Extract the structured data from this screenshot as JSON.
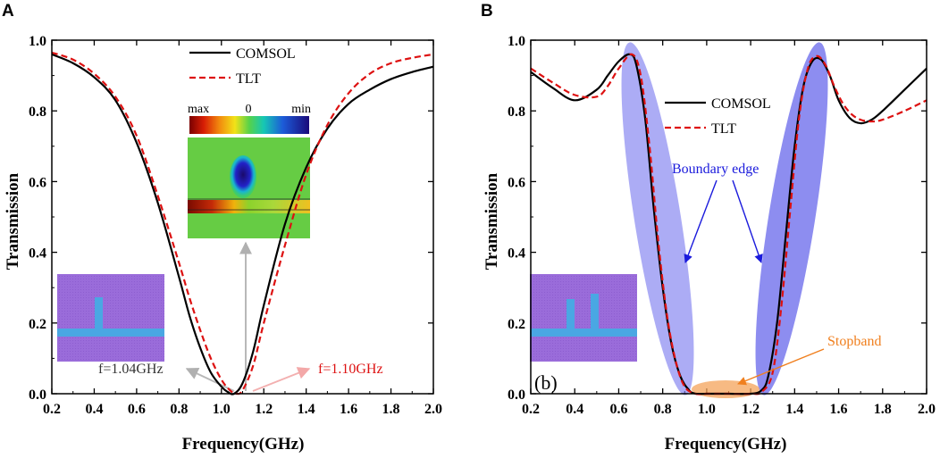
{
  "colors": {
    "comsol": "#000000",
    "tlt": "#dd1111",
    "edge_fill": "#6c6cf0",
    "stop_fill": "#f4a35a",
    "boundary_text": "#1a1adc",
    "stopband_text": "#f07f1e",
    "f104_text": "#333333",
    "f110_text": "#dd1111",
    "inset_bg": "#9b6dd9",
    "inset_stub": "#4aa7e3"
  },
  "chart_data": [
    {
      "type": "line",
      "panel": "A",
      "xlabel": "Frequency(GHz)",
      "ylabel": "Transmission",
      "xlim": [
        0.2,
        2.0
      ],
      "ylim": [
        0.0,
        1.0
      ],
      "xticks": [
        "0.2",
        "0.4",
        "0.6",
        "0.8",
        "1.0",
        "1.2",
        "1.4",
        "1.6",
        "1.8",
        "2.0"
      ],
      "yticks": [
        "0.0",
        "0.2",
        "0.4",
        "0.6",
        "0.8",
        "1.0"
      ],
      "series": [
        {
          "name": "COMSOL",
          "style": "solid",
          "x": [
            0.2,
            0.3,
            0.4,
            0.5,
            0.6,
            0.7,
            0.8,
            0.85,
            0.9,
            0.95,
            1.0,
            1.03,
            1.06,
            1.1,
            1.15,
            1.2,
            1.3,
            1.4,
            1.5,
            1.6,
            1.7,
            1.8,
            1.9,
            2.0
          ],
          "y": [
            0.96,
            0.935,
            0.895,
            0.83,
            0.71,
            0.54,
            0.33,
            0.22,
            0.13,
            0.06,
            0.02,
            0.005,
            0.0,
            0.03,
            0.12,
            0.25,
            0.48,
            0.64,
            0.75,
            0.82,
            0.86,
            0.89,
            0.91,
            0.925
          ]
        },
        {
          "name": "TLT",
          "style": "dashed",
          "x": [
            0.2,
            0.3,
            0.4,
            0.5,
            0.6,
            0.7,
            0.8,
            0.85,
            0.9,
            0.95,
            1.0,
            1.04,
            1.07,
            1.1,
            1.15,
            1.2,
            1.3,
            1.4,
            1.5,
            1.6,
            1.7,
            1.8,
            1.9,
            2.0
          ],
          "y": [
            0.965,
            0.945,
            0.905,
            0.84,
            0.73,
            0.56,
            0.37,
            0.27,
            0.18,
            0.1,
            0.04,
            0.01,
            0.0,
            0.01,
            0.08,
            0.2,
            0.42,
            0.62,
            0.76,
            0.85,
            0.905,
            0.935,
            0.95,
            0.96
          ]
        }
      ],
      "annotations": {
        "f_left": "f=1.04GHz",
        "f_right": "f=1.10GHz",
        "colorbar_max": "max",
        "colorbar_zero": "0",
        "colorbar_min": "min"
      },
      "legend": "top-center"
    },
    {
      "type": "line",
      "panel": "B",
      "xlabel": "Frequency(GHz)",
      "ylabel": "Transmission",
      "xlim": [
        0.2,
        2.0
      ],
      "ylim": [
        0.0,
        1.0
      ],
      "xticks": [
        "0.2",
        "0.4",
        "0.6",
        "0.8",
        "1.0",
        "1.2",
        "1.4",
        "1.6",
        "1.8",
        "2.0"
      ],
      "yticks": [
        "0.0",
        "0.2",
        "0.4",
        "0.6",
        "0.8",
        "1.0"
      ],
      "series": [
        {
          "name": "COMSOL",
          "style": "solid",
          "x": [
            0.2,
            0.3,
            0.4,
            0.5,
            0.55,
            0.6,
            0.65,
            0.68,
            0.72,
            0.76,
            0.8,
            0.84,
            0.88,
            0.92,
            0.95,
            1.0,
            1.1,
            1.2,
            1.25,
            1.28,
            1.32,
            1.36,
            1.4,
            1.44,
            1.48,
            1.52,
            1.56,
            1.6,
            1.65,
            1.7,
            1.75,
            1.8,
            1.9,
            2.0
          ],
          "y": [
            0.91,
            0.865,
            0.83,
            0.86,
            0.9,
            0.94,
            0.96,
            0.93,
            0.78,
            0.52,
            0.3,
            0.14,
            0.05,
            0.01,
            0.0,
            0.0,
            0.0,
            0.0,
            0.01,
            0.05,
            0.2,
            0.45,
            0.7,
            0.87,
            0.94,
            0.945,
            0.9,
            0.83,
            0.78,
            0.765,
            0.775,
            0.8,
            0.86,
            0.92
          ]
        },
        {
          "name": "TLT",
          "style": "dashed",
          "x": [
            0.2,
            0.3,
            0.4,
            0.5,
            0.55,
            0.6,
            0.66,
            0.7,
            0.74,
            0.78,
            0.82,
            0.86,
            0.9,
            0.95,
            1.0,
            1.1,
            1.2,
            1.25,
            1.3,
            1.34,
            1.38,
            1.42,
            1.46,
            1.5,
            1.54,
            1.58,
            1.62,
            1.66,
            1.7,
            1.75,
            1.8,
            1.9,
            2.0
          ],
          "y": [
            0.92,
            0.88,
            0.845,
            0.84,
            0.87,
            0.92,
            0.96,
            0.9,
            0.7,
            0.43,
            0.22,
            0.09,
            0.02,
            0.0,
            0.0,
            0.0,
            0.0,
            0.005,
            0.06,
            0.25,
            0.52,
            0.78,
            0.92,
            0.955,
            0.93,
            0.87,
            0.82,
            0.79,
            0.775,
            0.77,
            0.775,
            0.8,
            0.83
          ]
        }
      ],
      "annotations": {
        "boundary": "Boundary  edge",
        "stopband": "Stopband",
        "panel_b": "(b)"
      },
      "legend": "top-right"
    }
  ],
  "panels": {
    "a": "A",
    "b": "B"
  }
}
